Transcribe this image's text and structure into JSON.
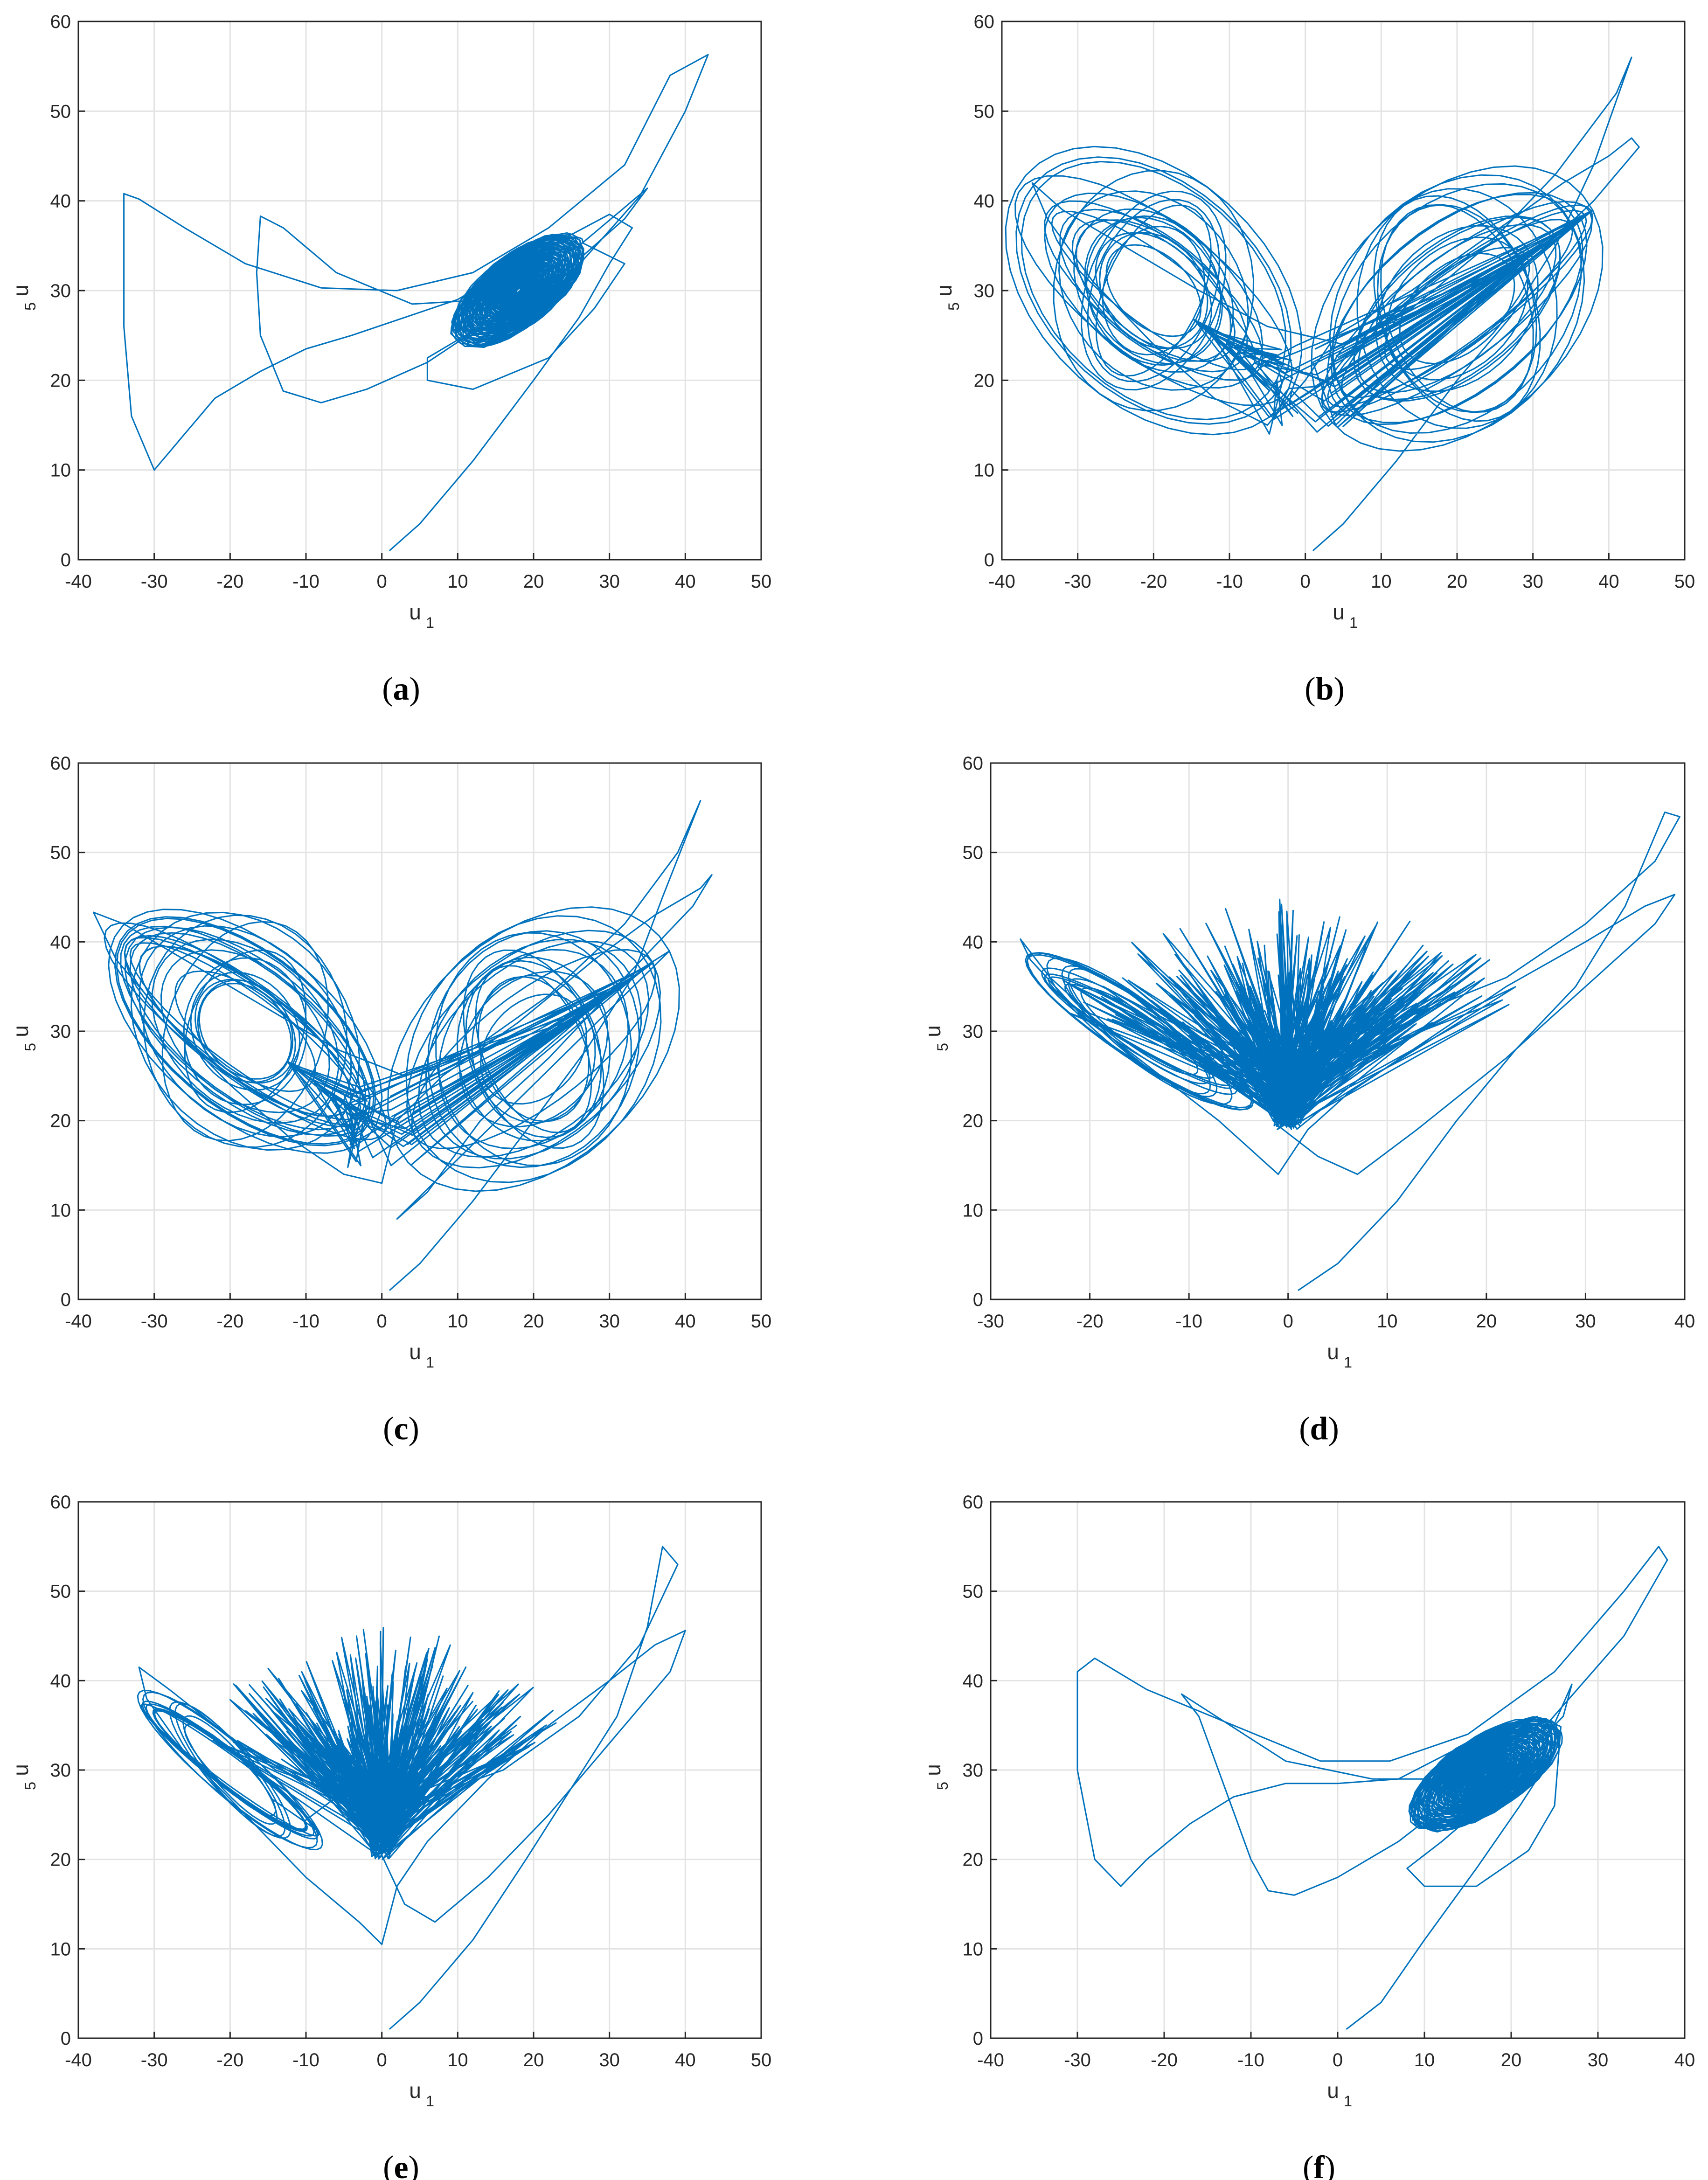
{
  "figure": {
    "line_color": "#0072bd",
    "grid_color": "#e3e3e3",
    "axis_color": "#262626"
  },
  "chart_data": [
    {
      "type": "line",
      "panel": "a",
      "caption_letter": "a",
      "xlabel": "u",
      "xlabel_sub": "1",
      "ylabel": "u",
      "ylabel_sub": "5",
      "xlim": [
        -40,
        50
      ],
      "ylim": [
        0,
        60
      ],
      "xticks": [
        -40,
        -30,
        -20,
        -10,
        0,
        10,
        20,
        30,
        40,
        50
      ],
      "yticks": [
        0,
        10,
        20,
        30,
        40,
        50,
        60
      ],
      "grid": true,
      "pattern": "converge",
      "center": [
        18,
        30
      ],
      "path": [
        [
          1,
          1
        ],
        [
          5,
          4
        ],
        [
          12,
          11
        ],
        [
          20,
          20
        ],
        [
          26,
          27
        ],
        [
          30,
          33
        ],
        [
          33,
          37
        ],
        [
          30,
          38.5
        ],
        [
          20,
          34
        ],
        [
          10,
          29
        ],
        [
          3,
          27
        ],
        [
          -4,
          25
        ],
        [
          -10,
          23.5
        ],
        [
          -16,
          21
        ],
        [
          -22,
          18
        ],
        [
          -26,
          14
        ],
        [
          -30,
          10
        ],
        [
          -33,
          16
        ],
        [
          -34,
          26
        ],
        [
          -34,
          35
        ],
        [
          -34,
          40.8
        ],
        [
          -32,
          40.2
        ],
        [
          -26,
          37
        ],
        [
          -18,
          33
        ],
        [
          -8,
          30.3
        ],
        [
          2,
          30
        ],
        [
          12,
          32
        ],
        [
          22,
          37
        ],
        [
          32,
          44
        ],
        [
          38,
          54
        ],
        [
          43,
          56.3
        ],
        [
          40,
          50
        ],
        [
          34,
          40.5
        ],
        [
          24,
          31
        ],
        [
          14,
          26.5
        ],
        [
          6,
          22
        ],
        [
          -2,
          19
        ],
        [
          -8,
          17.5
        ],
        [
          -13,
          18.8
        ],
        [
          -16,
          25
        ],
        [
          -16.5,
          32
        ],
        [
          -16,
          38.3
        ],
        [
          -13,
          37
        ],
        [
          -6,
          32
        ],
        [
          4,
          28.5
        ],
        [
          14,
          29
        ],
        [
          26,
          35
        ],
        [
          35,
          41.4
        ],
        [
          32,
          38
        ],
        [
          22,
          30.5
        ],
        [
          12,
          25.5
        ],
        [
          6,
          22.5
        ],
        [
          6,
          20
        ],
        [
          12,
          19
        ],
        [
          22,
          22.5
        ],
        [
          28,
          28
        ],
        [
          32,
          33
        ]
      ]
    },
    {
      "type": "line",
      "panel": "b",
      "caption_letter": "b",
      "xlabel": "u",
      "xlabel_sub": "1",
      "ylabel": "u",
      "ylabel_sub": "5",
      "xlim": [
        -40,
        50
      ],
      "ylim": [
        0,
        60
      ],
      "xticks": [
        -40,
        -30,
        -20,
        -10,
        0,
        10,
        20,
        30,
        40,
        50
      ],
      "yticks": [
        0,
        10,
        20,
        30,
        40,
        50,
        60
      ],
      "grid": true,
      "pattern": "butterfly",
      "left_center": [
        -20,
        30
      ],
      "right_center": [
        20,
        28
      ],
      "path": [
        [
          1,
          1
        ],
        [
          5,
          4
        ],
        [
          12,
          11
        ],
        [
          20,
          20
        ],
        [
          27,
          27
        ],
        [
          33,
          35
        ],
        [
          38,
          44
        ],
        [
          43,
          56
        ],
        [
          41,
          52
        ],
        [
          33,
          43
        ],
        [
          24,
          35
        ],
        [
          14,
          28
        ],
        [
          5,
          24
        ],
        [
          -5,
          26
        ],
        [
          -14,
          30
        ],
        [
          -24,
          35
        ],
        [
          -32,
          39
        ],
        [
          -36,
          42
        ],
        [
          -34,
          38
        ],
        [
          -28,
          31
        ],
        [
          -20,
          24
        ],
        [
          -12,
          18
        ],
        [
          -5,
          15
        ],
        [
          0,
          20
        ],
        [
          4,
          25
        ],
        [
          14,
          30
        ],
        [
          24,
          36
        ],
        [
          34,
          42
        ],
        [
          40,
          45
        ],
        [
          43,
          47
        ],
        [
          44,
          46
        ],
        [
          38,
          40
        ],
        [
          28,
          32
        ],
        [
          18,
          25
        ],
        [
          10,
          20
        ],
        [
          4,
          15
        ],
        [
          1,
          22
        ]
      ]
    },
    {
      "type": "line",
      "panel": "c",
      "caption_letter": "c",
      "xlabel": "u",
      "xlabel_sub": "1",
      "ylabel": "u",
      "ylabel_sub": "5",
      "xlim": [
        -40,
        50
      ],
      "ylim": [
        0,
        60
      ],
      "xticks": [
        -40,
        -30,
        -20,
        -10,
        0,
        10,
        20,
        30,
        40,
        50
      ],
      "yticks": [
        0,
        10,
        20,
        30,
        40,
        50,
        60
      ],
      "grid": true,
      "pattern": "butterfly",
      "left_center": [
        -18,
        30
      ],
      "right_center": [
        20,
        28
      ],
      "path": [
        [
          1,
          1
        ],
        [
          5,
          4
        ],
        [
          12,
          11
        ],
        [
          20,
          20
        ],
        [
          27,
          28
        ],
        [
          33,
          36
        ],
        [
          37,
          45
        ],
        [
          42,
          55.8
        ],
        [
          39,
          50
        ],
        [
          32,
          42
        ],
        [
          22,
          34
        ],
        [
          12,
          28
        ],
        [
          3,
          25
        ],
        [
          -6,
          28
        ],
        [
          -16,
          33
        ],
        [
          -26,
          38
        ],
        [
          -34,
          42
        ],
        [
          -38,
          43.3
        ],
        [
          -35,
          38
        ],
        [
          -28,
          31
        ],
        [
          -20,
          24
        ],
        [
          -12,
          18
        ],
        [
          -5,
          14
        ],
        [
          0,
          13
        ],
        [
          2,
          20
        ],
        [
          8,
          25
        ],
        [
          18,
          31
        ],
        [
          28,
          38
        ],
        [
          36,
          43
        ],
        [
          42,
          46
        ],
        [
          43.5,
          47.5
        ],
        [
          41,
          44
        ],
        [
          32,
          36
        ],
        [
          22,
          27
        ],
        [
          13,
          20
        ],
        [
          6,
          12
        ],
        [
          2,
          9
        ]
      ]
    },
    {
      "type": "line",
      "panel": "d",
      "caption_letter": "d",
      "xlabel": "u",
      "xlabel_sub": "1",
      "ylabel": "u",
      "ylabel_sub": "5",
      "xlim": [
        -30,
        40
      ],
      "ylim": [
        0,
        60
      ],
      "xticks": [
        -30,
        -20,
        -10,
        0,
        10,
        20,
        30,
        40
      ],
      "yticks": [
        0,
        10,
        20,
        30,
        40,
        50,
        60
      ],
      "grid": true,
      "pattern": "chaotic",
      "left_center": [
        -15,
        30
      ],
      "burst_center": [
        0,
        27
      ],
      "path": [
        [
          1,
          1
        ],
        [
          5,
          4
        ],
        [
          11,
          11
        ],
        [
          17,
          20
        ],
        [
          23,
          28
        ],
        [
          29,
          35
        ],
        [
          34,
          44
        ],
        [
          38,
          54.5
        ],
        [
          39.5,
          54
        ],
        [
          37,
          49
        ],
        [
          30,
          42
        ],
        [
          22,
          36
        ],
        [
          13,
          32
        ],
        [
          4,
          29
        ],
        [
          -5,
          27
        ],
        [
          -13,
          29
        ],
        [
          -20,
          32
        ],
        [
          -24,
          36
        ],
        [
          -27,
          40.3
        ],
        [
          -26,
          38
        ],
        [
          -21,
          32
        ],
        [
          -14,
          26
        ],
        [
          -7,
          20
        ],
        [
          -1,
          14
        ],
        [
          2,
          19
        ],
        [
          6,
          23
        ],
        [
          14,
          29
        ],
        [
          22,
          35
        ],
        [
          30,
          40
        ],
        [
          36,
          44
        ],
        [
          39,
          45.3
        ],
        [
          37,
          42
        ],
        [
          30,
          35
        ],
        [
          22,
          27
        ],
        [
          13,
          19
        ],
        [
          7,
          14
        ],
        [
          3,
          16
        ]
      ]
    },
    {
      "type": "line",
      "panel": "e",
      "caption_letter": "e",
      "xlabel": "u",
      "xlabel_sub": "1",
      "ylabel": "u",
      "ylabel_sub": "5",
      "xlim": [
        -40,
        50
      ],
      "ylim": [
        0,
        60
      ],
      "xticks": [
        -40,
        -30,
        -20,
        -10,
        0,
        10,
        20,
        30,
        40,
        50
      ],
      "yticks": [
        0,
        10,
        20,
        30,
        40,
        50,
        60
      ],
      "grid": true,
      "pattern": "chaotic",
      "left_center": [
        -20,
        30
      ],
      "burst_center": [
        0,
        28
      ],
      "path": [
        [
          1,
          1
        ],
        [
          5,
          4
        ],
        [
          12,
          11
        ],
        [
          19,
          20
        ],
        [
          25,
          28
        ],
        [
          31,
          36
        ],
        [
          35,
          46
        ],
        [
          37,
          55
        ],
        [
          39,
          53
        ],
        [
          34,
          44
        ],
        [
          26,
          36
        ],
        [
          16,
          30
        ],
        [
          6,
          27
        ],
        [
          -4,
          27
        ],
        [
          -14,
          30
        ],
        [
          -22,
          35
        ],
        [
          -28,
          39
        ],
        [
          -32,
          41.5
        ],
        [
          -31,
          38
        ],
        [
          -26,
          32
        ],
        [
          -18,
          25
        ],
        [
          -10,
          18
        ],
        [
          -3,
          13
        ],
        [
          0,
          10.5
        ],
        [
          2,
          17
        ],
        [
          6,
          22
        ],
        [
          14,
          29
        ],
        [
          22,
          35
        ],
        [
          30,
          40
        ],
        [
          36,
          44
        ],
        [
          40,
          45.6
        ],
        [
          38,
          41
        ],
        [
          30,
          33
        ],
        [
          22,
          25
        ],
        [
          14,
          18
        ],
        [
          7,
          13
        ],
        [
          3,
          15
        ]
      ]
    },
    {
      "type": "line",
      "panel": "f",
      "caption_letter": "f",
      "xlabel": "u",
      "xlabel_sub": "1",
      "ylabel": "u",
      "ylabel_sub": "5",
      "xlim": [
        -40,
        40
      ],
      "ylim": [
        0,
        60
      ],
      "xticks": [
        -40,
        -30,
        -20,
        -10,
        0,
        10,
        20,
        30,
        40
      ],
      "yticks": [
        0,
        10,
        20,
        30,
        40,
        50,
        60
      ],
      "grid": true,
      "pattern": "converge",
      "center": [
        17,
        29.5
      ],
      "path": [
        [
          1,
          1
        ],
        [
          5,
          4
        ],
        [
          10,
          11
        ],
        [
          16,
          19
        ],
        [
          21,
          26
        ],
        [
          25,
          32
        ],
        [
          23,
          36
        ],
        [
          15,
          33
        ],
        [
          7,
          29
        ],
        [
          0,
          28.5
        ],
        [
          -6,
          28.5
        ],
        [
          -12,
          27
        ],
        [
          -17,
          24
        ],
        [
          -22,
          20
        ],
        [
          -25,
          17
        ],
        [
          -28,
          20
        ],
        [
          -30,
          30
        ],
        [
          -30,
          41
        ],
        [
          -28,
          42.5
        ],
        [
          -22,
          39
        ],
        [
          -12,
          35
        ],
        [
          -2,
          31
        ],
        [
          6,
          31
        ],
        [
          15,
          34
        ],
        [
          25,
          41
        ],
        [
          33,
          50
        ],
        [
          37,
          55
        ],
        [
          38,
          53.5
        ],
        [
          33,
          45
        ],
        [
          24,
          35
        ],
        [
          15,
          28
        ],
        [
          7,
          22
        ],
        [
          0,
          18
        ],
        [
          -5,
          16
        ],
        [
          -8,
          16.5
        ],
        [
          -10,
          20
        ],
        [
          -13,
          28
        ],
        [
          -16,
          36
        ],
        [
          -18,
          38.5
        ],
        [
          -14,
          36
        ],
        [
          -6,
          31
        ],
        [
          4,
          29
        ],
        [
          14,
          29
        ],
        [
          22,
          32
        ],
        [
          26,
          36
        ],
        [
          27,
          39.6
        ],
        [
          24,
          33
        ],
        [
          18,
          27
        ],
        [
          12,
          22
        ],
        [
          8,
          19
        ],
        [
          10,
          17
        ],
        [
          16,
          17
        ],
        [
          22,
          21
        ],
        [
          25,
          26
        ]
      ]
    }
  ]
}
